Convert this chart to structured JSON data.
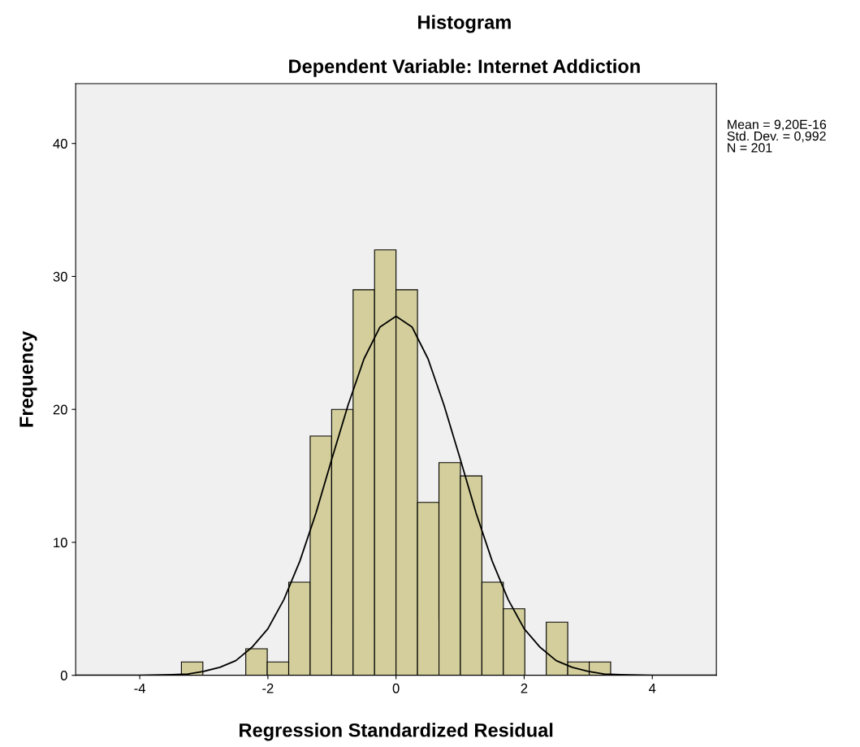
{
  "chart_data": {
    "type": "histogram",
    "title": "Histogram",
    "subtitle": "Dependent Variable: Internet Addiction",
    "xlabel": "Regression Standardized Residual",
    "ylabel": "Frequency",
    "bins": [
      -3.35,
      -3.015,
      -2.68,
      -2.345,
      -2.01,
      -1.675,
      -1.34,
      -1.005,
      -0.67,
      -0.335,
      0,
      0.335,
      0.67,
      1.005,
      1.34,
      1.675,
      2.01,
      2.345,
      2.68,
      3.015,
      3.35
    ],
    "series": [
      {
        "color": "#d3ce9b",
        "values": [
          1,
          0,
          0,
          2,
          1,
          7,
          18,
          20,
          29,
          32,
          29,
          13,
          16,
          15,
          7,
          5,
          0,
          4,
          1,
          1
        ]
      },
      {
        "type": "line",
        "color": "#000000",
        "x": [
          -5,
          -4.5,
          -4,
          -3.5,
          -3.25,
          -3,
          -2.75,
          -2.5,
          -2.25,
          -2,
          -1.75,
          -1.5,
          -1.25,
          -1,
          -0.75,
          -0.5,
          -0.25,
          0,
          0.25,
          0.5,
          0.75,
          1,
          1.25,
          1.5,
          1.75,
          2,
          2.25,
          2.5,
          2.75,
          3,
          3.25,
          3.5,
          4,
          4.5,
          5
        ],
        "values": [
          0,
          0,
          0,
          0.05,
          0.1,
          0.3,
          0.6,
          1.1,
          2.1,
          3.5,
          5.7,
          8.6,
          12.2,
          16.3,
          20.3,
          23.8,
          26.2,
          27,
          26.2,
          23.8,
          20.3,
          16.3,
          12.2,
          8.6,
          5.7,
          3.5,
          2.1,
          1.1,
          0.6,
          0.3,
          0.1,
          0.05,
          0,
          0,
          0
        ]
      }
    ],
    "xlim": [
      -5,
      5
    ],
    "ylim": [
      0,
      44.5
    ],
    "xticks": [
      -4,
      -2,
      0,
      2,
      4
    ],
    "yticks": [
      0,
      10,
      20,
      30,
      40
    ],
    "annotations": [
      "Mean = 9,20E-16\nStd. Dev. = 0,992\nN = 201"
    ],
    "grid": false,
    "legend": false
  }
}
